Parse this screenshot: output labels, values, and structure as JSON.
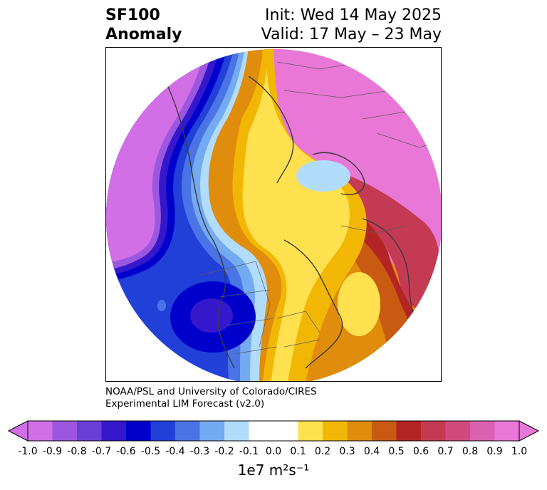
{
  "title": {
    "line1_left": "SF100",
    "line2_left": "Anomaly",
    "line1_right": "Init: Wed 14 May 2025",
    "line2_right": "Valid: 17 May – 23 May"
  },
  "credit": {
    "line1": "NOAA/PSL and University of Colorado/CIRES",
    "line2": "Experimental LIM Forecast (v2.0)"
  },
  "colorbar": {
    "ticks": [
      "-1.0",
      "-0.9",
      "-0.8",
      "-0.7",
      "-0.6",
      "-0.5",
      "-0.4",
      "-0.3",
      "-0.2",
      "-0.1",
      "0.0",
      "0.1",
      "0.2",
      "0.3",
      "0.4",
      "0.5",
      "0.6",
      "0.7",
      "0.8",
      "0.9",
      "1.0"
    ],
    "colors": [
      "#d36fe6",
      "#9b57e0",
      "#6a3ed8",
      "#3518cc",
      "#0000cc",
      "#2040d8",
      "#4a74e6",
      "#73aaf2",
      "#b2dcfb",
      "#ffffff",
      "#ffffff",
      "#ffe14f",
      "#f2b705",
      "#e08c0c",
      "#c85a12",
      "#b42424",
      "#c43a52",
      "#d04a7c",
      "#dc60b0",
      "#e877d8"
    ],
    "units": "1e7 m²s⁻¹",
    "extend": "both"
  },
  "map": {
    "projection": "north-polar-stereographic",
    "field": "SF100 streamfunction anomaly",
    "features": [
      {
        "name": "pacific-magenta-anomaly",
        "sign": "negative",
        "color": "#d36fe6"
      },
      {
        "name": "north-america-blue-trough",
        "sign": "negative",
        "color": "#2040d8"
      },
      {
        "name": "arctic-yellow-ridge",
        "sign": "positive",
        "color": "#ffe14f"
      },
      {
        "name": "europe-red-anomaly",
        "sign": "positive",
        "color": "#c43a52"
      },
      {
        "name": "asia-orange-anomaly",
        "sign": "positive",
        "color": "#e08c0c"
      }
    ]
  }
}
